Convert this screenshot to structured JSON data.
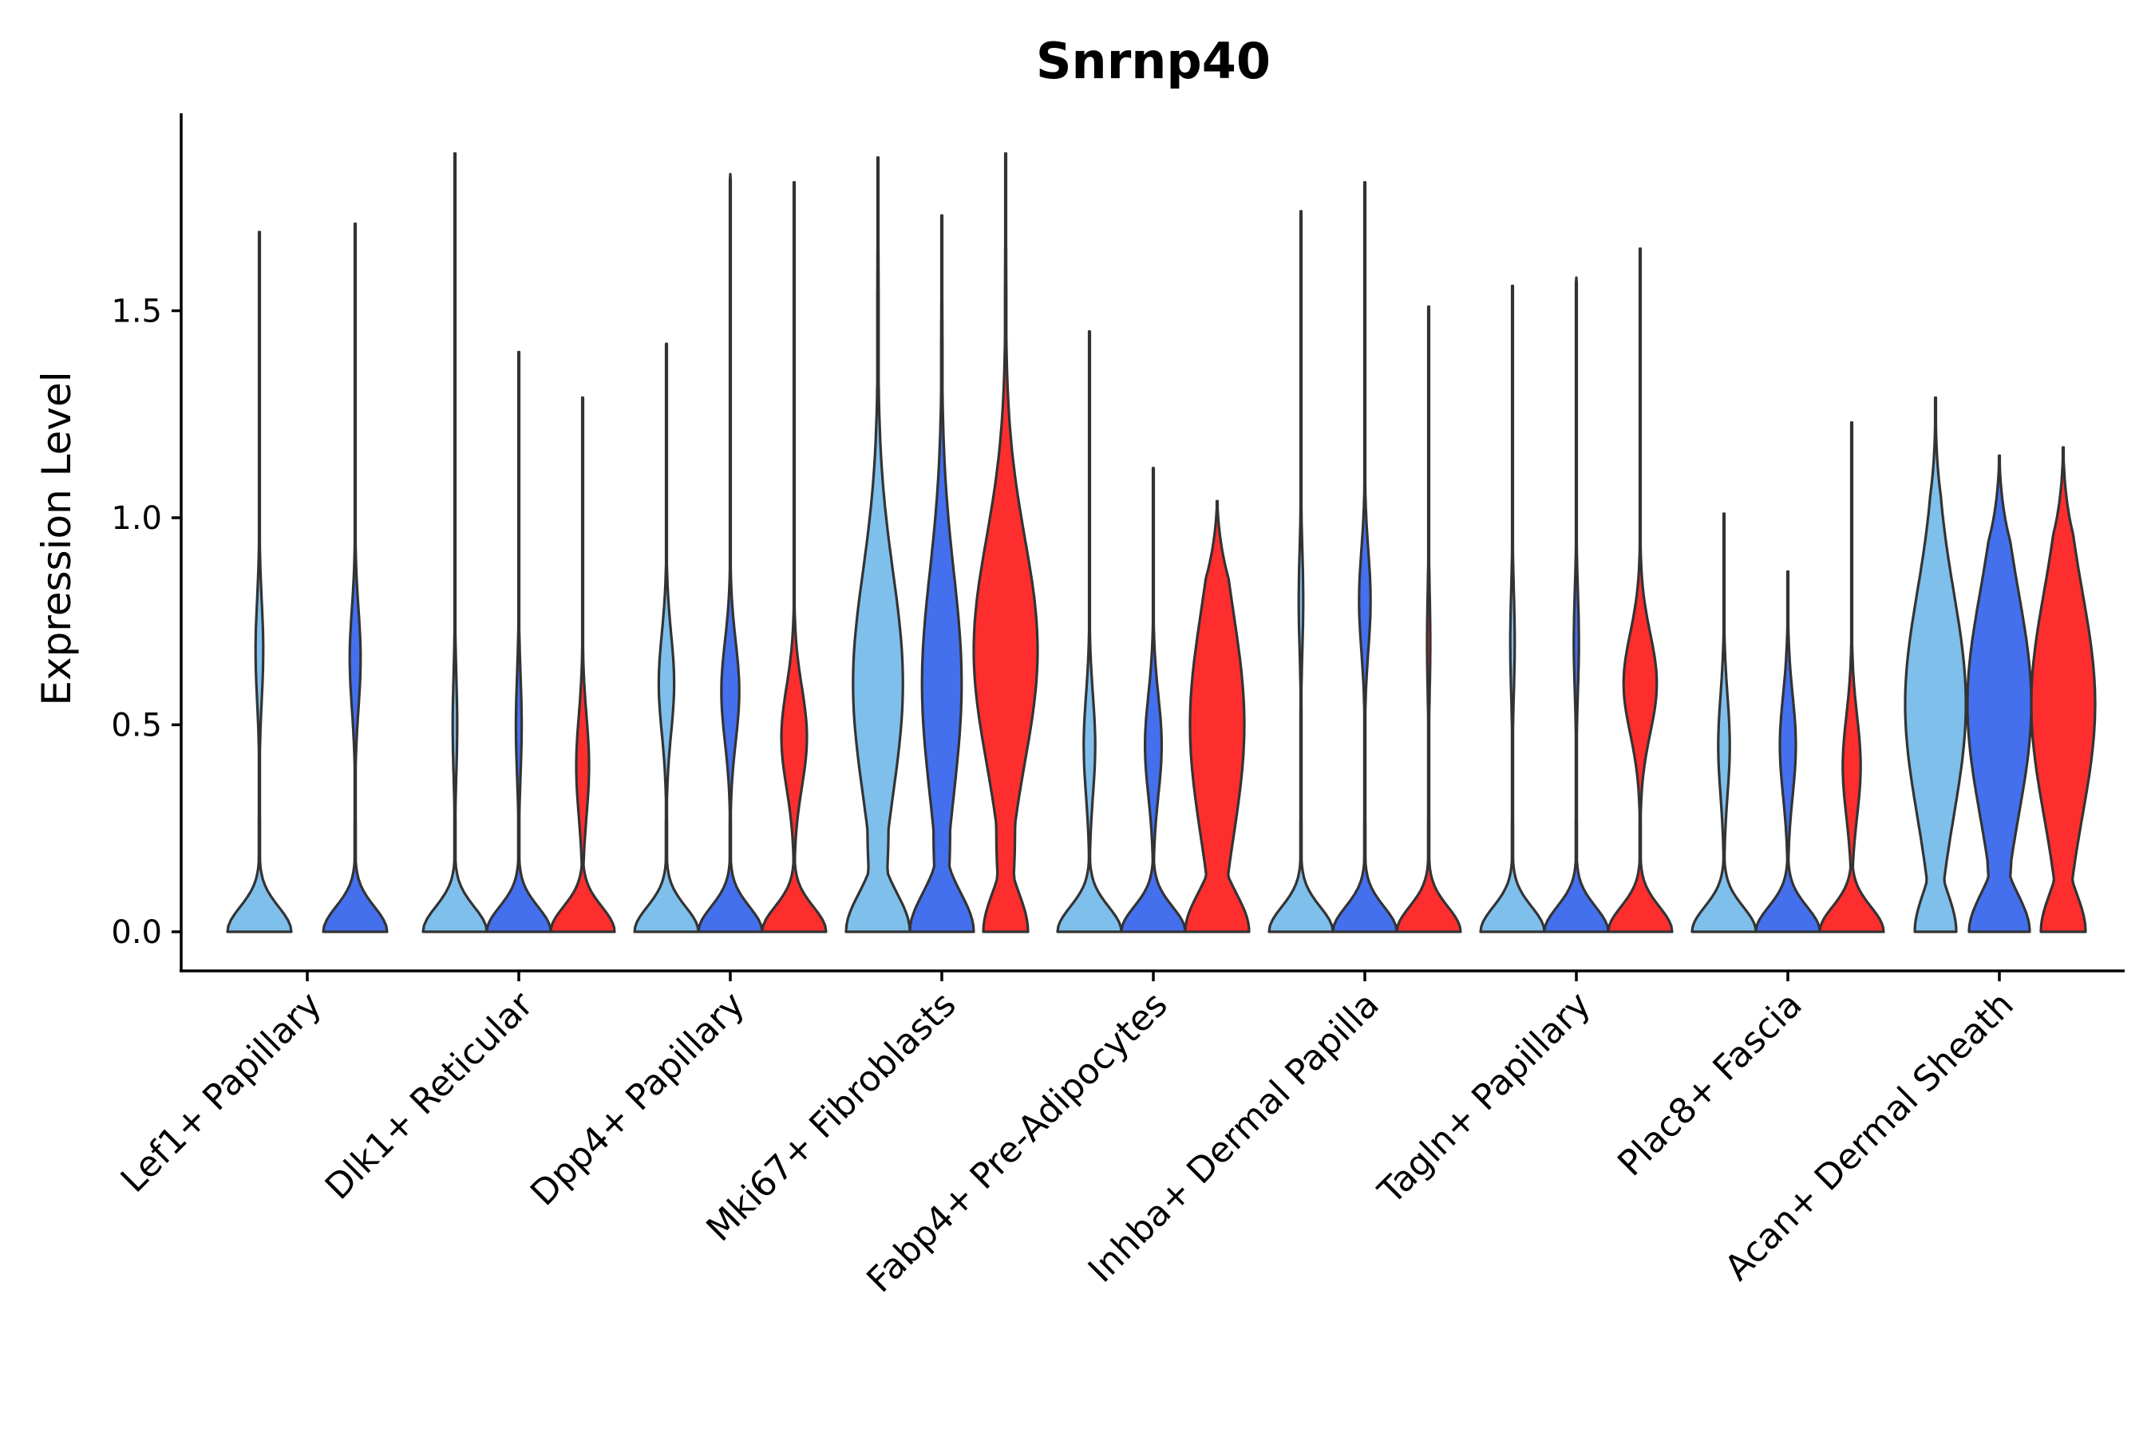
{
  "chart_data": {
    "type": "violin",
    "title": "Snrnp40",
    "xlabel": "",
    "ylabel": "Expression Level",
    "ylim": [
      -0.095,
      1.97
    ],
    "yticks": [
      0.0,
      0.5,
      1.0,
      1.5
    ],
    "ytick_labels": [
      "0.0",
      "0.5",
      "1.0",
      "1.5"
    ],
    "grid": false,
    "legend": "none",
    "series_colors": {
      "s1": "#7fbfec",
      "s2": "#4470ee",
      "s3": "#ff2e2e"
    },
    "categories": [
      {
        "label": "Lef1+ Papillary",
        "violins": [
          {
            "series": "s1",
            "max": 1.69,
            "shape": "bimodal",
            "mode_hi": 0.68,
            "w_hi": 0.12,
            "w_lo": 1.0
          },
          {
            "series": "s2",
            "max": 1.71,
            "shape": "bimodal",
            "mode_hi": 0.66,
            "w_hi": 0.17,
            "w_lo": 1.0
          }
        ]
      },
      {
        "label": "Dlk1+ Reticular",
        "violins": [
          {
            "series": "s1",
            "max": 1.88,
            "shape": "bimodal",
            "mode_hi": 0.5,
            "w_hi": 0.07,
            "w_lo": 1.0
          },
          {
            "series": "s2",
            "max": 1.4,
            "shape": "bimodal",
            "mode_hi": 0.5,
            "w_hi": 0.09,
            "w_lo": 1.0
          },
          {
            "series": "s3",
            "max": 1.29,
            "shape": "bimodal",
            "mode_hi": 0.4,
            "w_hi": 0.2,
            "w_lo": 1.0
          }
        ]
      },
      {
        "label": "Dpp4+ Papillary",
        "violins": [
          {
            "series": "s1",
            "max": 1.42,
            "shape": "bimodal",
            "mode_hi": 0.6,
            "w_hi": 0.24,
            "w_lo": 1.0
          },
          {
            "series": "s2",
            "max": 1.83,
            "shape": "bimodal",
            "mode_hi": 0.58,
            "w_hi": 0.28,
            "w_lo": 1.0
          },
          {
            "series": "s3",
            "max": 1.81,
            "shape": "bimodal",
            "mode_hi": 0.47,
            "w_hi": 0.4,
            "w_lo": 1.0
          }
        ]
      },
      {
        "label": "Mki67+ Fibroblasts",
        "violins": [
          {
            "series": "s1",
            "max": 1.87,
            "shape": "broad",
            "mode_hi": 0.6,
            "w_hi": 0.78,
            "w_lo": 1.0
          },
          {
            "series": "s2",
            "max": 1.73,
            "shape": "broad",
            "mode_hi": 0.6,
            "w_hi": 0.62,
            "w_lo": 1.0
          },
          {
            "series": "s3",
            "max": 1.88,
            "shape": "broad",
            "mode_hi": 0.68,
            "w_hi": 1.0,
            "w_lo": 0.7
          }
        ]
      },
      {
        "label": "Fabp4+ Pre-Adipocytes",
        "violins": [
          {
            "series": "s1",
            "max": 1.45,
            "shape": "bimodal",
            "mode_hi": 0.45,
            "w_hi": 0.18,
            "w_lo": 1.0
          },
          {
            "series": "s2",
            "max": 1.12,
            "shape": "bimodal",
            "mode_hi": 0.45,
            "w_hi": 0.26,
            "w_lo": 1.0
          },
          {
            "series": "s3",
            "max": 1.04,
            "shape": "broad",
            "mode_hi": 0.5,
            "w_hi": 0.85,
            "w_lo": 1.0
          }
        ]
      },
      {
        "label": "Inhba+ Dermal Papilla",
        "violins": [
          {
            "series": "s1",
            "max": 1.74,
            "shape": "bimodal",
            "mode_hi": 0.8,
            "w_hi": 0.07,
            "w_lo": 1.0
          },
          {
            "series": "s2",
            "max": 1.81,
            "shape": "bimodal",
            "mode_hi": 0.8,
            "w_hi": 0.18,
            "w_lo": 1.0
          },
          {
            "series": "s3",
            "max": 1.51,
            "shape": "bimodal",
            "mode_hi": 0.7,
            "w_hi": 0.05,
            "w_lo": 1.0
          }
        ]
      },
      {
        "label": "Tagln+ Papillary",
        "violins": [
          {
            "series": "s1",
            "max": 1.56,
            "shape": "bimodal",
            "mode_hi": 0.7,
            "w_hi": 0.07,
            "w_lo": 1.0
          },
          {
            "series": "s2",
            "max": 1.58,
            "shape": "bimodal",
            "mode_hi": 0.7,
            "w_hi": 0.08,
            "w_lo": 1.0
          },
          {
            "series": "s3",
            "max": 1.65,
            "shape": "bimodal",
            "mode_hi": 0.6,
            "w_hi": 0.52,
            "w_lo": 1.0
          }
        ]
      },
      {
        "label": "Plac8+ Fascia",
        "violins": [
          {
            "series": "s1",
            "max": 1.01,
            "shape": "bimodal",
            "mode_hi": 0.45,
            "w_hi": 0.18,
            "w_lo": 1.0
          },
          {
            "series": "s2",
            "max": 0.87,
            "shape": "bimodal",
            "mode_hi": 0.45,
            "w_hi": 0.25,
            "w_lo": 1.0
          },
          {
            "series": "s3",
            "max": 1.23,
            "shape": "bimodal",
            "mode_hi": 0.4,
            "w_hi": 0.28,
            "w_lo": 1.0
          }
        ]
      },
      {
        "label": "Acan+ Dermal Sheath",
        "violins": [
          {
            "series": "s1",
            "max": 1.29,
            "shape": "broad",
            "mode_hi": 0.55,
            "w_hi": 0.95,
            "w_lo": 0.65
          },
          {
            "series": "s2",
            "max": 1.15,
            "shape": "broad",
            "mode_hi": 0.55,
            "w_hi": 1.0,
            "w_lo": 0.95
          },
          {
            "series": "s3",
            "max": 1.17,
            "shape": "broad",
            "mode_hi": 0.55,
            "w_hi": 1.0,
            "w_lo": 0.7
          }
        ]
      }
    ]
  }
}
